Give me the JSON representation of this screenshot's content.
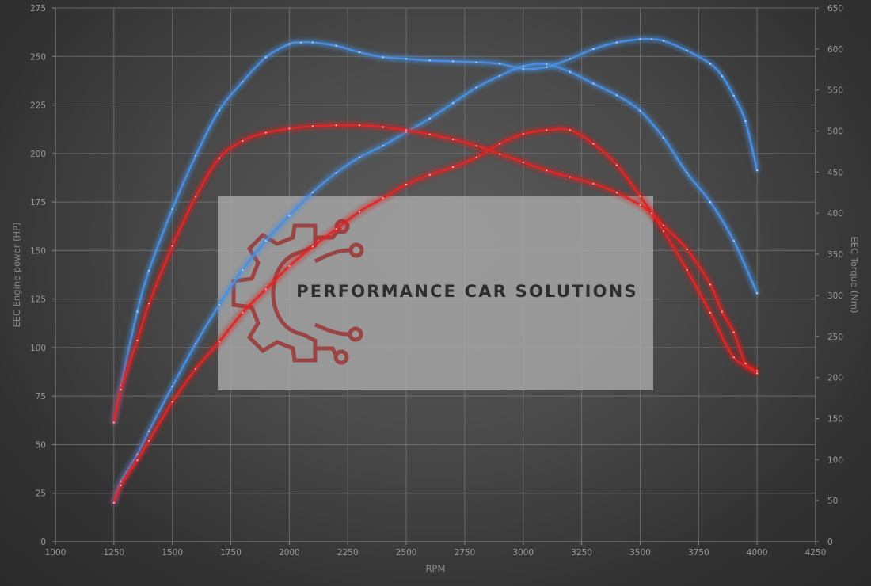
{
  "chart_data": {
    "type": "line",
    "xlabel": "RPM",
    "ylabel_left": "EEC Engine power (HP)",
    "ylabel_right": "EEC Torque (Nm)",
    "xlim": [
      1000,
      4250
    ],
    "ylim_left": [
      0,
      275
    ],
    "ylim_right": [
      0,
      650
    ],
    "xticks": [
      1000,
      1250,
      1500,
      1750,
      2000,
      2250,
      2500,
      2750,
      3000,
      3250,
      3500,
      3750,
      4000,
      4250
    ],
    "yticks_left": [
      0,
      25,
      50,
      75,
      100,
      125,
      150,
      175,
      200,
      225,
      250,
      275
    ],
    "yticks_right": [
      0,
      50,
      100,
      150,
      200,
      250,
      300,
      350,
      400,
      450,
      500,
      550,
      600,
      650
    ],
    "grid": true,
    "legend": "none",
    "series": [
      {
        "color": "#4a8fe0",
        "axis": "left",
        "x": [
          1250,
          1280,
          1350,
          1400,
          1500,
          1600,
          1700,
          1800,
          1900,
          2000,
          2100,
          2200,
          2300,
          2400,
          2500,
          2600,
          2700,
          2800,
          2900,
          3000,
          3100,
          3200,
          3300,
          3400,
          3500,
          3600,
          3700,
          3800,
          3900,
          4000
        ],
        "y": [
          20,
          31,
          45,
          57,
          80,
          102,
          122,
          140,
          155,
          168,
          180,
          190,
          198,
          204,
          211,
          218,
          226,
          234,
          240,
          245,
          246,
          242,
          236,
          230,
          222,
          208,
          190,
          175,
          155,
          128
        ]
      },
      {
        "color": "#4a8fe0",
        "axis": "right",
        "x": [
          1250,
          1280,
          1350,
          1400,
          1500,
          1600,
          1700,
          1800,
          1900,
          2000,
          2050,
          2100,
          2200,
          2300,
          2400,
          2500,
          2600,
          2700,
          2800,
          2900,
          3000,
          3100,
          3200,
          3300,
          3400,
          3500,
          3550,
          3600,
          3700,
          3800,
          3850,
          3900,
          3950,
          4000
        ],
        "y": [
          145,
          190,
          280,
          330,
          405,
          470,
          525,
          560,
          590,
          606,
          608,
          608,
          604,
          596,
          590,
          588,
          586,
          585,
          584,
          582,
          576,
          578,
          588,
          600,
          608,
          612,
          612,
          610,
          598,
          582,
          567,
          543,
          512,
          452
        ]
      },
      {
        "color": "#e02828",
        "axis": "left",
        "x": [
          1250,
          1280,
          1350,
          1400,
          1500,
          1600,
          1700,
          1800,
          1900,
          2000,
          2100,
          2200,
          2300,
          2400,
          2500,
          2600,
          2700,
          2800,
          2900,
          3000,
          3100,
          3200,
          3300,
          3400,
          3500,
          3600,
          3700,
          3800,
          3900,
          4000
        ],
        "y": [
          20,
          29,
          42,
          52,
          72,
          89,
          103,
          118,
          130,
          142,
          152,
          161,
          170,
          177,
          184,
          189,
          193,
          198,
          205,
          210,
          212,
          212,
          205,
          194,
          178,
          160,
          140,
          118,
          95,
          88
        ]
      },
      {
        "color": "#e02828",
        "axis": "right",
        "x": [
          1250,
          1280,
          1350,
          1400,
          1500,
          1600,
          1700,
          1800,
          1900,
          2000,
          2100,
          2200,
          2300,
          2400,
          2500,
          2600,
          2700,
          2800,
          2900,
          3000,
          3100,
          3200,
          3300,
          3400,
          3500,
          3550,
          3600,
          3700,
          3800,
          3850,
          3900,
          3950,
          4000
        ],
        "y": [
          145,
          185,
          245,
          290,
          360,
          420,
          467,
          488,
          498,
          503,
          506,
          507,
          507,
          505,
          501,
          496,
          490,
          482,
          472,
          462,
          452,
          444,
          436,
          425,
          410,
          400,
          385,
          356,
          313,
          280,
          255,
          217,
          205
        ]
      }
    ]
  },
  "watermark": {
    "text": "PERFORMANCE CAR SOLUTIONS",
    "logo": "gear-circuit-logo"
  }
}
